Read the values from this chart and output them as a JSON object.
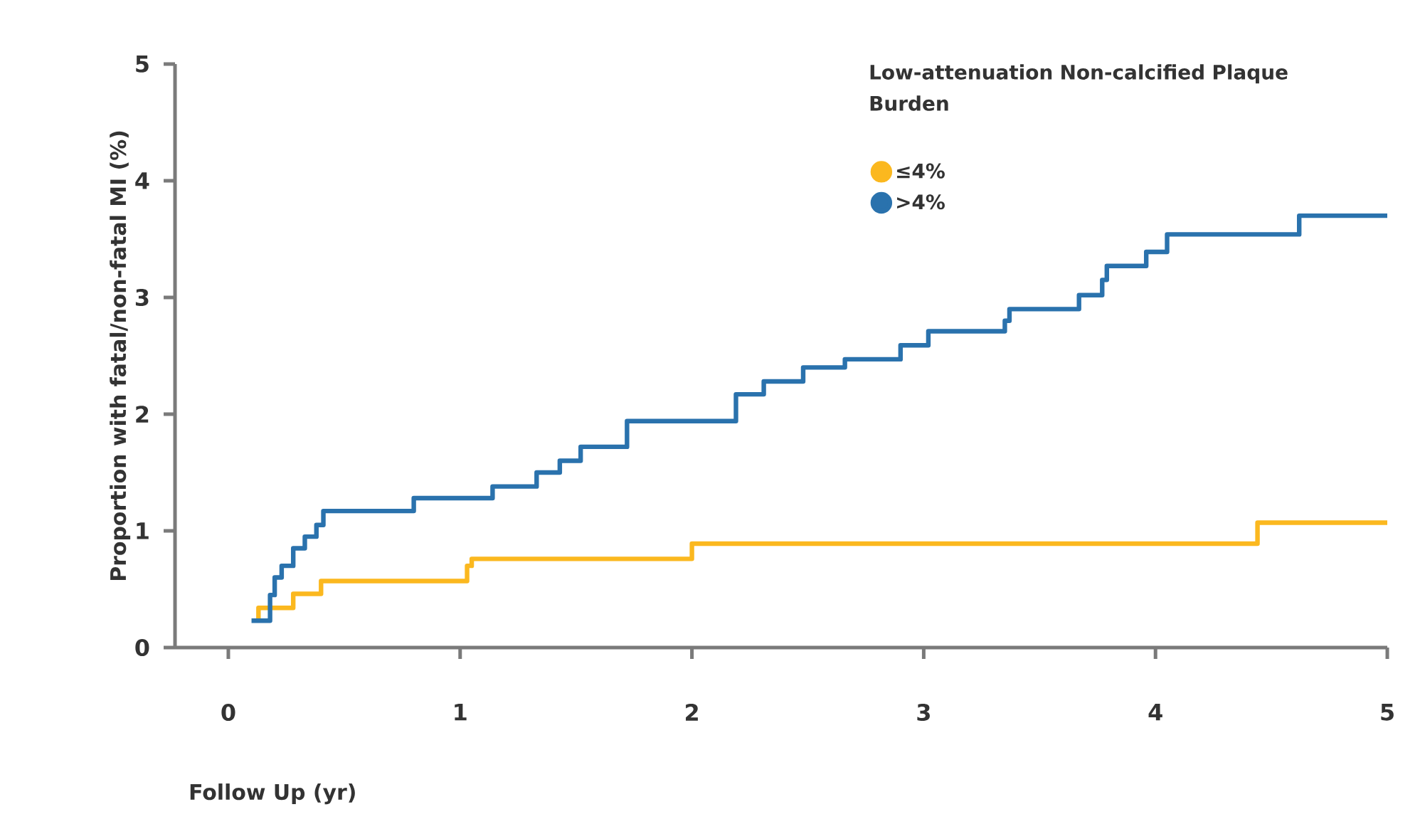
{
  "chart_data": {
    "type": "step",
    "xlabel": "Follow Up (yr)",
    "ylabel": "Proportion with fatal/non-fatal MI (%)",
    "legend_title": "Low-attenuation Non-calcified Plaque Burden",
    "xlim": [
      -0.23,
      5
    ],
    "ylim": [
      0,
      5
    ],
    "xticks": [
      0,
      1,
      2,
      3,
      4,
      5
    ],
    "yticks": [
      0,
      1,
      2,
      3,
      4,
      5
    ],
    "grid": false,
    "legend": "top right",
    "series": [
      {
        "name": "≤4%",
        "color": "#fbb81f",
        "x": [
          0.13,
          0.13,
          0.28,
          0.4,
          1.03,
          1.05,
          2.0,
          4.44,
          5.0
        ],
        "values": [
          0.22,
          0.34,
          0.46,
          0.57,
          0.7,
          0.76,
          0.89,
          1.07,
          1.07
        ]
      },
      {
        "name": ">4%",
        "color": "#2a72ad",
        "x": [
          0.1,
          0.18,
          0.2,
          0.23,
          0.28,
          0.33,
          0.38,
          0.41,
          0.8,
          1.14,
          1.33,
          1.43,
          1.52,
          1.72,
          2.19,
          2.31,
          2.48,
          2.66,
          2.9,
          3.02,
          3.35,
          3.37,
          3.67,
          3.77,
          3.79,
          3.96,
          4.05,
          4.62,
          5.0
        ],
        "values": [
          0.23,
          0.45,
          0.6,
          0.7,
          0.85,
          0.95,
          1.05,
          1.17,
          1.28,
          1.38,
          1.5,
          1.6,
          1.72,
          1.94,
          2.17,
          2.28,
          2.4,
          2.47,
          2.59,
          2.71,
          2.8,
          2.9,
          3.02,
          3.15,
          3.27,
          3.39,
          3.54,
          3.7,
          3.7
        ]
      }
    ]
  }
}
